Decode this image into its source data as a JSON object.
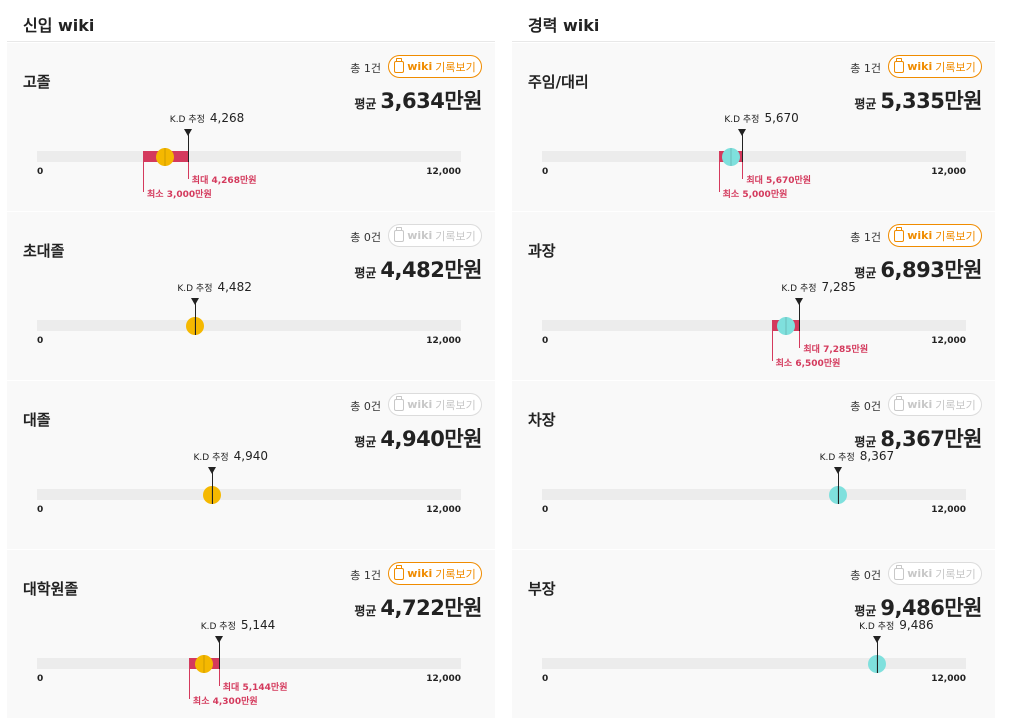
{
  "sections": [
    {
      "title": "신입 wiki",
      "type": "newcomer",
      "cards": [
        {
          "title": "고졸",
          "count": "총 1건",
          "wiki_enabled": true,
          "avg_label": "평균",
          "avg_value": "3,634만원",
          "est_label": "K.D 추정",
          "est_value": "4,268",
          "est": 4268,
          "min": 3000,
          "max": 4268,
          "dot": 3634,
          "min_label": "최소 3,000만원",
          "max_label": "최대 4,268만원"
        },
        {
          "title": "초대졸",
          "count": "총 0건",
          "wiki_enabled": false,
          "avg_label": "평균",
          "avg_value": "4,482만원",
          "est_label": "K.D 추정",
          "est_value": "4,482",
          "est": 4482,
          "dot": 4482
        },
        {
          "title": "대졸",
          "count": "총 0건",
          "wiki_enabled": false,
          "avg_label": "평균",
          "avg_value": "4,940만원",
          "est_label": "K.D 추정",
          "est_value": "4,940",
          "est": 4940,
          "dot": 4940
        },
        {
          "title": "대학원졸",
          "count": "총 1건",
          "wiki_enabled": true,
          "avg_label": "평균",
          "avg_value": "4,722만원",
          "est_label": "K.D 추정",
          "est_value": "5,144",
          "est": 5144,
          "min": 4300,
          "max": 5144,
          "dot": 4722,
          "min_label": "최소 4,300만원",
          "max_label": "최대 5,144만원"
        }
      ]
    },
    {
      "title": "경력 wiki",
      "type": "career",
      "cards": [
        {
          "title": "주임/대리",
          "count": "총 1건",
          "wiki_enabled": true,
          "avg_label": "평균",
          "avg_value": "5,335만원",
          "est_label": "K.D 추정",
          "est_value": "5,670",
          "est": 5670,
          "min": 5000,
          "max": 5670,
          "dot": 5335,
          "min_label": "최소 5,000만원",
          "max_label": "최대 5,670만원"
        },
        {
          "title": "과장",
          "count": "총 1건",
          "wiki_enabled": true,
          "avg_label": "평균",
          "avg_value": "6,893만원",
          "est_label": "K.D 추정",
          "est_value": "7,285",
          "est": 7285,
          "min": 6500,
          "max": 7285,
          "dot": 6893,
          "min_label": "최소 6,500만원",
          "max_label": "최대 7,285만원"
        },
        {
          "title": "차장",
          "count": "총 0건",
          "wiki_enabled": false,
          "avg_label": "평균",
          "avg_value": "8,367만원",
          "est_label": "K.D 추정",
          "est_value": "8,367",
          "est": 8367,
          "dot": 8367
        },
        {
          "title": "부장",
          "count": "총 0건",
          "wiki_enabled": false,
          "avg_label": "평균",
          "avg_value": "9,486만원",
          "est_label": "K.D 추정",
          "est_value": "9,486",
          "est": 9486,
          "dot": 9486
        }
      ]
    }
  ],
  "wiki_button": {
    "prefix": "wiki",
    "label": "기록보기"
  },
  "axis": {
    "min": 0,
    "max": 12000,
    "min_label": "0",
    "max_label": "12,000"
  },
  "colors": {
    "newcomer_dot": "#f5b800",
    "career_dot": "#7fe0dd",
    "range": "#d43a5d",
    "accent": "#f08c00"
  }
}
